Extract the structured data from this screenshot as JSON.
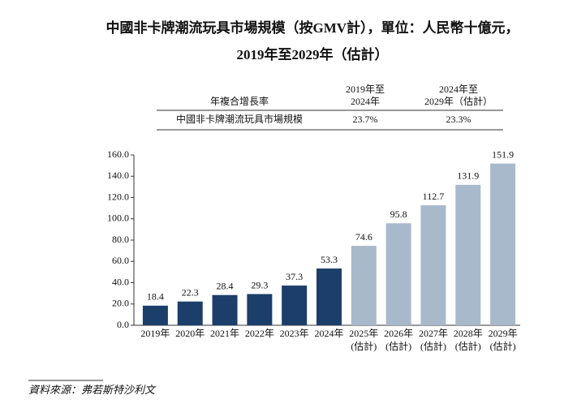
{
  "chart_data": {
    "type": "bar",
    "title": "中國非卡牌潮流玩具市場規模（按GMV計），單位：人民幣十億元，",
    "subtitle": "2019年至2029年（估計）",
    "categories": [
      [
        "2019年"
      ],
      [
        "2020年"
      ],
      [
        "2021年"
      ],
      [
        "2022年"
      ],
      [
        "2023年"
      ],
      [
        "2024年"
      ],
      [
        "2025年",
        "(估計)"
      ],
      [
        "2026年",
        "(估計)"
      ],
      [
        "2027年",
        "(估計)"
      ],
      [
        "2028年",
        "(估計)"
      ],
      [
        "2029年",
        "(估計)"
      ]
    ],
    "values": [
      18.4,
      22.3,
      28.4,
      29.3,
      37.3,
      53.3,
      74.6,
      95.8,
      112.7,
      131.9,
      151.9
    ],
    "bar_colors": [
      "#1b3f6a",
      "#1b3f6a",
      "#1b3f6a",
      "#1b3f6a",
      "#1b3f6a",
      "#1b3f6a",
      "#a9b9cc",
      "#a9b9cc",
      "#a9b9cc",
      "#a9b9cc",
      "#a9b9cc"
    ],
    "ylim": [
      0,
      160
    ],
    "yticks": [
      {
        "value": 0,
        "label": "0.0"
      },
      {
        "value": 20,
        "label": "20.0"
      },
      {
        "value": 40,
        "label": "40.0"
      },
      {
        "value": 60,
        "label": "60.0"
      },
      {
        "value": 80,
        "label": "80.0"
      },
      {
        "value": 100,
        "label": "100.0"
      },
      {
        "value": 120,
        "label": "120.0"
      },
      {
        "value": 140,
        "label": "140.0"
      },
      {
        "value": 160,
        "label": "160.0"
      }
    ],
    "grid": false
  },
  "table": {
    "header": [
      [
        "年複合增長率"
      ],
      [
        "2019年至",
        "2024年"
      ],
      [
        "2024年至",
        "2029年（估計）"
      ]
    ],
    "rows": [
      [
        "中國非卡牌潮流玩具市場規模",
        "23.7%",
        "23.3%"
      ]
    ]
  },
  "source": "資料來源：弗若斯特沙利文"
}
